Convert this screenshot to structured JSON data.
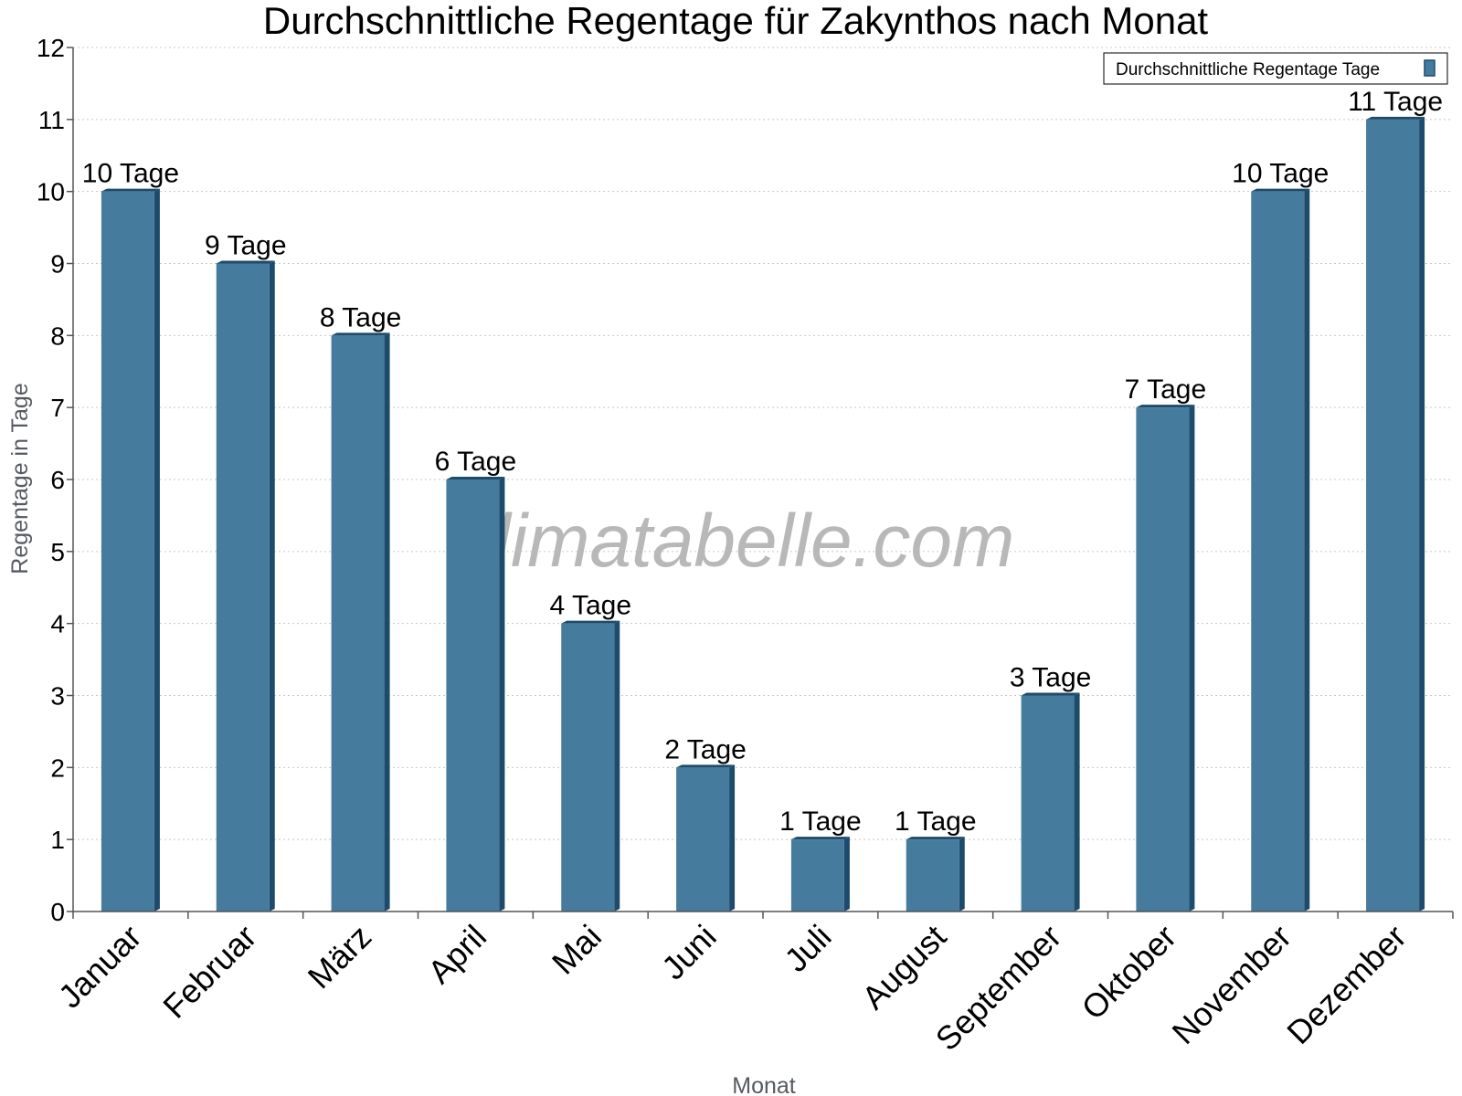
{
  "chart_data": {
    "type": "bar",
    "title": "Durchschnittliche Regentage für Zakynthos nach Monat",
    "xlabel": "Monat",
    "ylabel": "Regentage in Tage",
    "categories": [
      "Januar",
      "Februar",
      "März",
      "April",
      "Mai",
      "Juni",
      "Juli",
      "August",
      "September",
      "Oktober",
      "November",
      "Dezember"
    ],
    "series": [
      {
        "name": "Durchschnittliche Regentage Tage",
        "values": [
          10,
          9,
          8,
          6,
          4,
          2,
          1,
          1,
          3,
          7,
          10,
          11
        ],
        "color": "#457b9d",
        "side_color": "#1d4b6b"
      }
    ],
    "value_labels": [
      "10 Tage",
      "9 Tage",
      "8 Tage",
      "6 Tage",
      "4 Tage",
      "2 Tage",
      "1 Tage",
      "1 Tage",
      "3 Tage",
      "7 Tage",
      "10 Tage",
      "11 Tage"
    ],
    "ylim": [
      0,
      12
    ],
    "yticks": [
      0,
      1,
      2,
      3,
      4,
      5,
      6,
      7,
      8,
      9,
      10,
      11,
      12
    ],
    "grid": true,
    "legend_position": "top-right",
    "watermark": "klimatabelle.com"
  }
}
